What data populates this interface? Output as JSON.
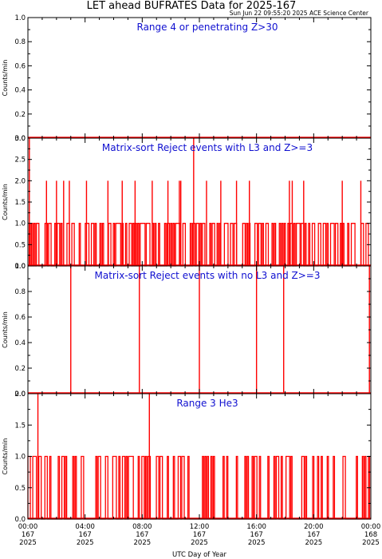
{
  "header": {
    "title": "LET ahead BUFRATES Data for 2025-167",
    "timestamp": "Sun Jun 22 09:55:20 2025 ACE Science Center"
  },
  "colors": {
    "data": "#ff0000",
    "panel_title": "#1010d0",
    "axes": "#000000"
  },
  "chart_data": [
    {
      "type": "bar",
      "title": "Range 4 or  penetrating Z>30",
      "ylabel": "Counts/min",
      "ylim": [
        0,
        1.0
      ],
      "yticks": [
        "0.0",
        "0.2",
        "0.4",
        "0.6",
        "0.8",
        "1.0"
      ],
      "events": [],
      "baseline": []
    },
    {
      "type": "bar",
      "title": "Matrix-sort Reject events with L3 and Z>=3",
      "ylabel": "Counts/min",
      "ylim": [
        0,
        3.0
      ],
      "yticks": [
        "0.0",
        "0.5",
        "1.0",
        "1.5",
        "2.0",
        "2.5",
        "3.0"
      ],
      "events": [
        [
          0.1,
          3
        ],
        [
          11.6,
          3
        ],
        [
          1.3,
          2
        ],
        [
          2.0,
          2
        ],
        [
          2.5,
          2
        ],
        [
          2.9,
          2
        ],
        [
          4.1,
          2
        ],
        [
          5.6,
          2
        ],
        [
          6.6,
          2
        ],
        [
          7.5,
          2
        ],
        [
          8.7,
          2
        ],
        [
          9.8,
          2
        ],
        [
          10.6,
          2
        ],
        [
          10.7,
          2
        ],
        [
          12.5,
          2
        ],
        [
          13.5,
          2
        ],
        [
          14.6,
          2
        ],
        [
          15.5,
          2
        ],
        [
          18.3,
          2
        ],
        [
          18.5,
          2
        ],
        [
          19.3,
          2
        ],
        [
          22.0,
          2
        ],
        [
          23.3,
          2
        ]
      ],
      "baseline": [
        0,
        1,
        0,
        1,
        0,
        1,
        0,
        1,
        1,
        0,
        0,
        0,
        0,
        0,
        1,
        1,
        0,
        1,
        1,
        0,
        0,
        0,
        1,
        0,
        1,
        1,
        0,
        1,
        0,
        0,
        0,
        0,
        1,
        1,
        0,
        0,
        1,
        1,
        0,
        0,
        0,
        0,
        1,
        0,
        0,
        0,
        0,
        1,
        1,
        1,
        0,
        0,
        1,
        1,
        0,
        1,
        0,
        0,
        0,
        1,
        0,
        1,
        0,
        0,
        0,
        0,
        1,
        1,
        0,
        0,
        1,
        0,
        1,
        1,
        1,
        1,
        0,
        1,
        0,
        0,
        1,
        0,
        0,
        1,
        1,
        0,
        1,
        0,
        1,
        0,
        1,
        0,
        1,
        1,
        1,
        1,
        0,
        1,
        1,
        1,
        0,
        0,
        1,
        0,
        1,
        0,
        0,
        1,
        0,
        0,
        0,
        0,
        1,
        0,
        1,
        1,
        0,
        1,
        0,
        1,
        0,
        1,
        1,
        1,
        1,
        0,
        0,
        1,
        1,
        0,
        0,
        0,
        0,
        1,
        0,
        1,
        1,
        0,
        1,
        1,
        0,
        1,
        0,
        1,
        1,
        0,
        0,
        0,
        0,
        1,
        0,
        1,
        1,
        0,
        0,
        1,
        0,
        1,
        0,
        0,
        0,
        1,
        1,
        1,
        0,
        0,
        1,
        1,
        0,
        1,
        1,
        0,
        0,
        0,
        0,
        0,
        1,
        1,
        0,
        1,
        0,
        1,
        0,
        0,
        0,
        0,
        1,
        1,
        0,
        1,
        1,
        0,
        1,
        0,
        0,
        1,
        1,
        0,
        0,
        0,
        1,
        0,
        1,
        0,
        0,
        0,
        1,
        0,
        1,
        0,
        1,
        0,
        0,
        1,
        0,
        1,
        1,
        0,
        1,
        0,
        1,
        1,
        1,
        0,
        1,
        1,
        0,
        1,
        0,
        0,
        1,
        0,
        0,
        1,
        1,
        0,
        0,
        0,
        1,
        1,
        0,
        0,
        1,
        1,
        0,
        1,
        0,
        0,
        1,
        1,
        1,
        0,
        1,
        1,
        0,
        0,
        1,
        0,
        1,
        0,
        0,
        0,
        1,
        0,
        0,
        1,
        1,
        1,
        0,
        0,
        0,
        0,
        0,
        1,
        1,
        0,
        0,
        1,
        1,
        0,
        0
      ]
    },
    {
      "type": "bar",
      "title": "Matrix-sort Reject events with no L3 and Z>=3",
      "ylabel": "Counts/min",
      "ylim": [
        0,
        1.0
      ],
      "yticks": [
        "0.0",
        "0.2",
        "0.4",
        "0.6",
        "0.8",
        "1.0"
      ],
      "events": [
        [
          3.0,
          1
        ],
        [
          7.8,
          1
        ],
        [
          12.0,
          1
        ],
        [
          16.0,
          1
        ],
        [
          17.9,
          1
        ],
        [
          23.9,
          1
        ]
      ],
      "baseline": []
    },
    {
      "type": "bar",
      "title": "Range 3 He3",
      "ylabel": "Counts/min",
      "ylim": [
        0,
        2.0
      ],
      "yticks": [
        "0.0",
        "0.5",
        "1.0",
        "1.5",
        "2.0"
      ],
      "events": [
        [
          0.7,
          2
        ],
        [
          8.5,
          2
        ]
      ],
      "baseline": [
        1,
        1,
        0,
        0,
        1,
        1,
        1,
        0,
        0,
        1,
        1,
        0,
        0,
        0,
        1,
        1,
        0,
        0,
        1,
        0,
        0,
        0,
        0,
        0,
        0,
        1,
        0,
        0,
        1,
        1,
        0,
        1,
        0,
        0,
        0,
        0,
        0,
        1,
        0,
        1,
        0,
        0,
        0,
        0,
        1,
        1,
        0,
        0,
        0,
        0,
        0,
        0,
        0,
        0,
        0,
        0,
        1,
        0,
        1,
        1,
        0,
        0,
        0,
        0,
        1,
        1,
        0,
        0,
        0,
        0,
        1,
        1,
        1,
        0,
        0,
        1,
        0,
        0,
        1,
        1,
        0,
        1,
        0,
        1,
        1,
        1,
        1,
        0,
        0,
        0,
        0,
        1,
        0,
        0,
        1,
        1,
        0,
        1,
        0,
        1,
        1,
        0,
        0,
        0,
        0,
        0,
        1,
        1,
        0,
        1,
        1,
        0,
        0,
        0,
        0,
        1,
        0,
        0,
        0,
        0,
        1,
        0,
        0,
        0,
        1,
        1,
        0,
        1,
        1,
        0,
        0,
        0,
        1,
        0,
        0,
        0,
        0,
        0,
        0,
        0,
        0,
        0,
        0,
        0,
        1,
        0,
        1,
        0,
        1,
        0,
        0,
        1,
        0,
        1,
        0,
        0,
        0,
        0,
        0,
        0,
        0,
        1,
        0,
        0,
        1,
        0,
        0,
        0,
        0,
        0,
        0,
        0,
        1,
        0,
        0,
        0,
        0,
        0,
        0,
        1,
        0,
        1,
        0,
        0,
        0,
        1,
        0,
        1,
        1,
        0,
        0,
        1,
        0,
        0,
        0,
        0,
        0,
        0,
        1,
        0,
        0,
        0,
        0,
        1,
        0,
        1,
        1,
        0,
        0,
        1,
        0,
        0,
        0,
        1,
        1,
        1,
        0,
        1,
        0,
        0,
        0,
        0,
        0,
        0,
        0,
        0,
        1,
        1,
        0,
        1,
        0,
        0,
        0,
        0,
        0,
        1,
        0,
        0,
        0,
        1,
        0,
        0,
        1,
        0,
        0,
        0,
        0,
        1,
        0,
        0,
        0,
        0,
        1,
        0,
        0,
        0,
        0,
        0,
        0,
        0,
        1,
        1,
        0,
        0,
        0,
        0,
        0,
        0,
        0,
        0,
        0,
        1,
        0,
        0,
        0,
        0,
        1,
        0,
        1,
        0,
        0,
        1,
        0
      ]
    }
  ],
  "x_axis": {
    "label": "UTC Day of Year",
    "ticks": [
      {
        "time": "00:00",
        "doy": "167",
        "year": "2025"
      },
      {
        "time": "04:00",
        "doy": "167",
        "year": "2025"
      },
      {
        "time": "08:00",
        "doy": "167",
        "year": "2025"
      },
      {
        "time": "12:00",
        "doy": "167",
        "year": "2025"
      },
      {
        "time": "16:00",
        "doy": "167",
        "year": "2025"
      },
      {
        "time": "20:00",
        "doy": "167",
        "year": "2025"
      },
      {
        "time": "00:00",
        "doy": "168",
        "year": "2025"
      }
    ],
    "range_hours": [
      0,
      24
    ]
  }
}
